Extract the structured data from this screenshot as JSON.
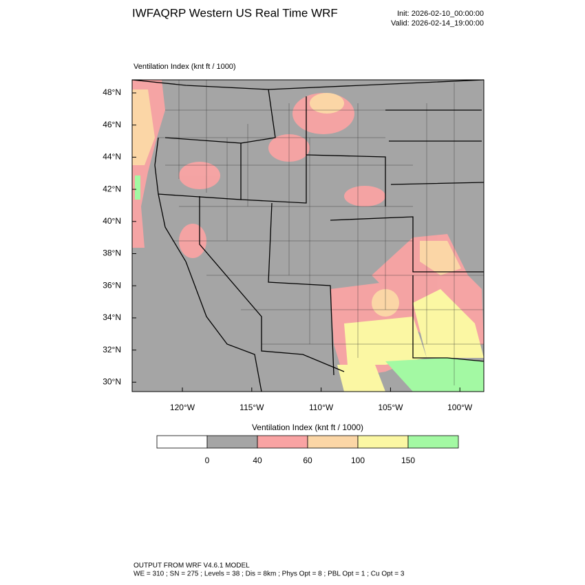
{
  "header": {
    "title": "IWFAQRP Western US Real Time WRF",
    "init": "Init: 2026-02-10_00:00:00",
    "valid": "Valid: 2026-02-14_19:00:00"
  },
  "map": {
    "label": "Ventilation Index   (knt ft / 1000)",
    "lat_ticks": [
      "48°N",
      "46°N",
      "44°N",
      "42°N",
      "40°N",
      "38°N",
      "36°N",
      "34°N",
      "32°N",
      "30°N"
    ],
    "lon_ticks": [
      "120°W",
      "115°W",
      "110°W",
      "105°W",
      "100°W"
    ]
  },
  "colorbar": {
    "title": "Ventilation Index   (knt ft / 1000)",
    "colors": [
      "#ffffff",
      "#a5a5a5",
      "#f9a3a3",
      "#fbd6a6",
      "#fbf7a3",
      "#a3f9a3"
    ],
    "ticks": [
      0,
      40,
      60,
      100,
      150
    ]
  },
  "footer": {
    "line1": "OUTPUT FROM WRF V4.6.1 MODEL",
    "line2": "WE = 310 ; SN = 275 ; Levels = 38 ; Dis = 8km ; Phys Opt = 8 ; PBL Opt = 1 ; Cu Opt = 3"
  }
}
